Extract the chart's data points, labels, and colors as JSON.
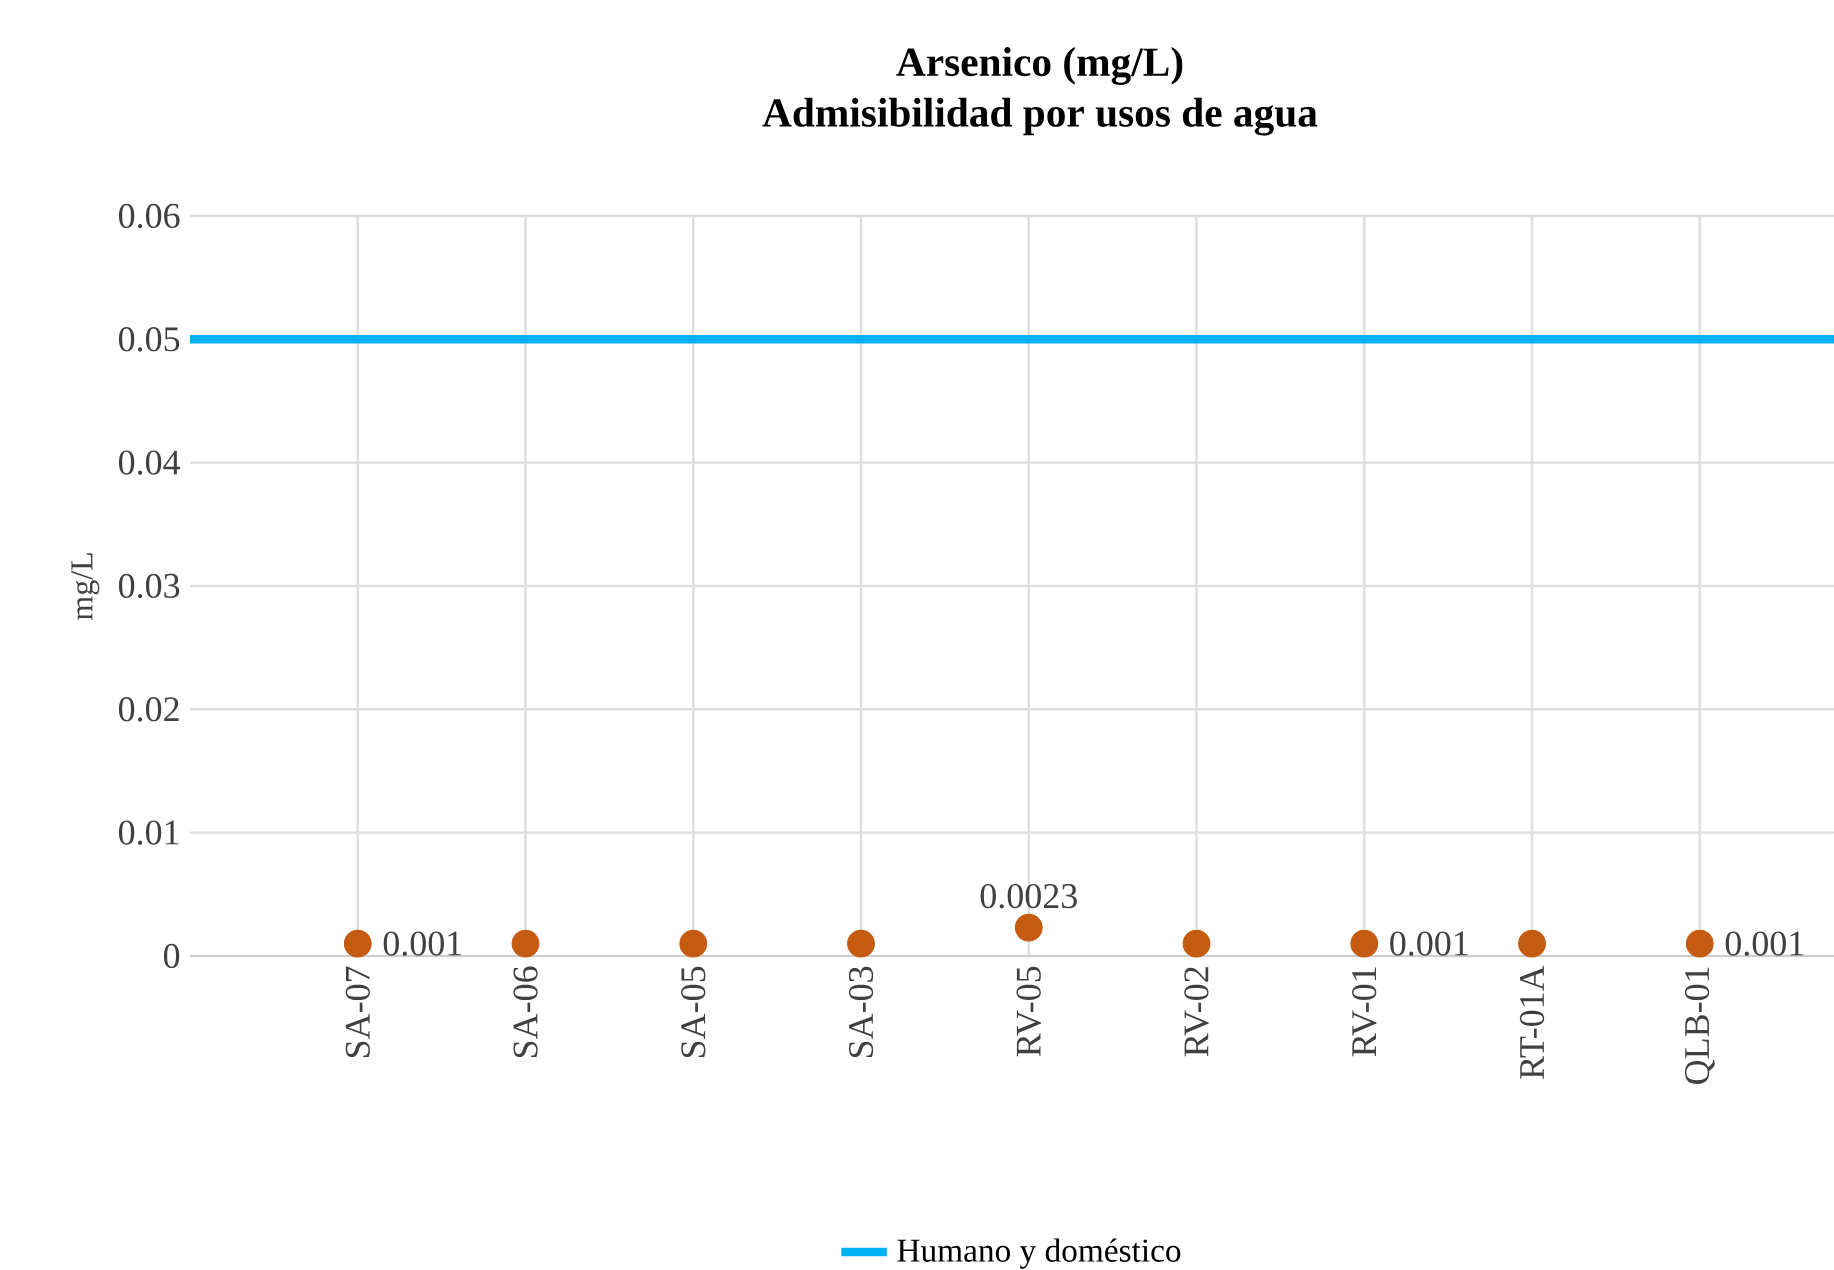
{
  "chart_data": {
    "type": "scatter",
    "title": "Arsenico  (mg/L)",
    "subtitle": "Admisibilidad por usos de agua",
    "ylabel": "mg/L",
    "categories": [
      "SA-07",
      "SA-06",
      "SA-05",
      "SA-03",
      "RV-05",
      "RV-02",
      "RV-01",
      "RT-01A",
      "QLB-01"
    ],
    "series": [
      {
        "color": "#c55a11",
        "values": [
          0.001,
          0.001,
          0.001,
          0.001,
          0.0023,
          0.001,
          0.001,
          0.001,
          0.001
        ],
        "value_labels": [
          "0.001",
          null,
          null,
          null,
          "0.0023",
          null,
          "0.001",
          null,
          "0.001"
        ]
      }
    ],
    "ref_lines": [
      {
        "axis": "y",
        "value": 0.05,
        "label": "Humano y doméstico",
        "color": "#00b0f0"
      }
    ],
    "ylim": [
      0,
      0.06
    ],
    "yticks": [
      0,
      0.01,
      0.02,
      0.03,
      0.04,
      0.05,
      0.06
    ],
    "grid": true,
    "marker": "circle",
    "legend": "bottom"
  }
}
